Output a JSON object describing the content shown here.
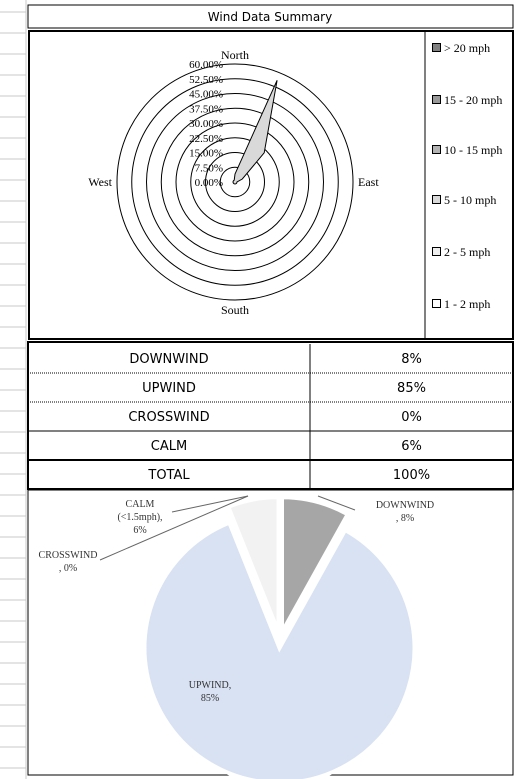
{
  "title": "Wind Data Summary",
  "chart_data": [
    {
      "type": "radar",
      "compass": {
        "north": "North",
        "south": "South",
        "east": "East",
        "west": "West"
      },
      "categories": [
        null,
        null,
        null,
        null,
        null,
        null,
        null,
        null,
        null,
        null,
        null,
        null,
        null,
        null,
        null,
        null
      ],
      "ylim": [
        0,
        60
      ],
      "yticks": [
        {
          "value": 0,
          "label": "0.00%"
        },
        {
          "value": 7.5,
          "label": "7.50%"
        },
        {
          "value": 15,
          "label": "15.00%"
        },
        {
          "value": 22.5,
          "label": "22.50%"
        },
        {
          "value": 30,
          "label": "30.00%"
        },
        {
          "value": 37.5,
          "label": "37.50%"
        },
        {
          "value": 45,
          "label": "45.00%"
        },
        {
          "value": 52.5,
          "label": "52.50%"
        },
        {
          "value": 60,
          "label": "60.00%"
        }
      ],
      "series": [
        {
          "name": "> 20 mph",
          "color": "#808080",
          "values": [
            0,
            0,
            0,
            0,
            0,
            0,
            0,
            0,
            0,
            0,
            0,
            0,
            0,
            0,
            0,
            0
          ]
        },
        {
          "name": "15 - 20 mph",
          "color": "#999999",
          "values": [
            0,
            0,
            0,
            0,
            0,
            0,
            0,
            0,
            0,
            0,
            0,
            0,
            0,
            0,
            0,
            0
          ]
        },
        {
          "name": "10 - 15 mph",
          "color": "#b3b3b3",
          "values": [
            0,
            0,
            0,
            0,
            0,
            0,
            0,
            0,
            0,
            0,
            0,
            0,
            0,
            0,
            0,
            0
          ]
        },
        {
          "name": "5 - 10 mph",
          "color": "#d9d9d9",
          "values": [
            4,
            56,
            21,
            4,
            1,
            1,
            1,
            1,
            1,
            1,
            1,
            1,
            1,
            1,
            1,
            1
          ]
        },
        {
          "name": "2 - 5 mph",
          "color": "#eeeeee",
          "values": [
            0,
            0,
            0,
            0,
            0,
            0,
            0,
            0,
            0,
            0,
            0,
            0,
            0,
            0,
            0,
            0
          ]
        },
        {
          "name": "1 - 2 mph",
          "color": "#ffffff",
          "values": [
            0,
            0,
            0,
            0,
            0,
            0,
            0,
            0,
            0,
            0,
            0,
            0,
            0,
            0,
            0,
            0
          ]
        }
      ]
    },
    {
      "type": "pie",
      "categories": [
        "DOWNWIND",
        "UPWIND",
        "CROSSWIND",
        "CALM"
      ],
      "values": [
        8,
        85,
        0,
        6
      ],
      "colors": [
        "#a6a6a6",
        "#d9e2f3",
        "#cccccc",
        "#f2f2f2"
      ],
      "data_labels": [
        [
          "DOWNWIND",
          ", 8%"
        ],
        [
          "UPWIND,",
          "85%"
        ],
        [
          "CROSSWIND",
          ", 0%"
        ],
        [
          "CALM",
          "(<1.5mph),",
          "6%"
        ]
      ]
    }
  ],
  "table": {
    "rows": [
      [
        "DOWNWIND",
        "8%"
      ],
      [
        "UPWIND",
        "85%"
      ],
      [
        "CROSSWIND",
        "0%"
      ],
      [
        "CALM",
        "6%"
      ],
      [
        "TOTAL",
        "100%"
      ]
    ]
  }
}
